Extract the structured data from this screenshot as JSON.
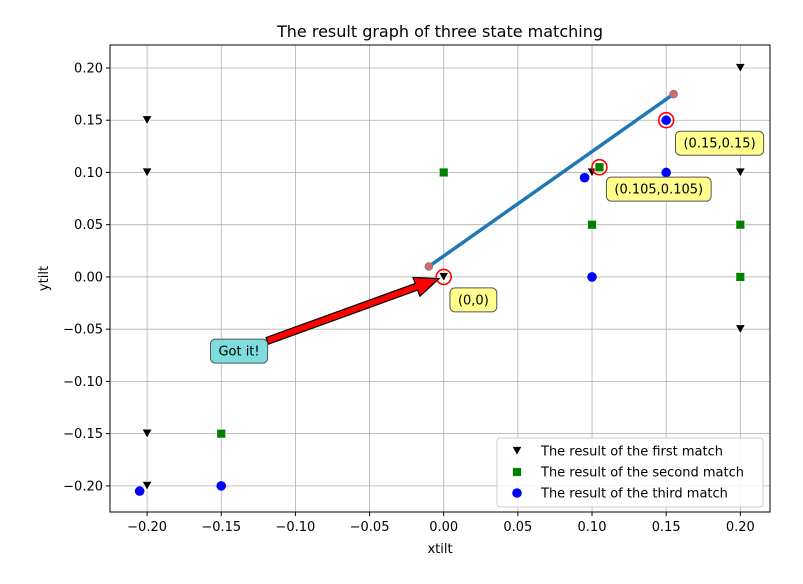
{
  "chart_data": {
    "type": "scatter",
    "title": "The result graph of three state matching",
    "xlabel": "xtilt",
    "ylabel": "ytilt",
    "xlim": [
      -0.225,
      0.22
    ],
    "ylim": [
      -0.225,
      0.222
    ],
    "xticks": [
      -0.2,
      -0.15,
      -0.1,
      -0.05,
      0.0,
      0.05,
      0.1,
      0.15,
      0.2
    ],
    "xtick_labels": [
      "−0.20",
      "−0.15",
      "−0.10",
      "−0.05",
      "0.00",
      "0.05",
      "0.10",
      "0.15",
      "0.20"
    ],
    "yticks": [
      -0.2,
      -0.15,
      -0.1,
      -0.05,
      0.0,
      0.05,
      0.1,
      0.15,
      0.2
    ],
    "ytick_labels": [
      "−0.20",
      "−0.15",
      "−0.10",
      "−0.05",
      "0.00",
      "0.05",
      "0.10",
      "0.15",
      "0.20"
    ],
    "grid": true,
    "legend_position": "lower-right",
    "series": [
      {
        "name": "The result of the first match",
        "marker": "triangle-down",
        "color": "#000000",
        "points": [
          [
            -0.2,
            0.15
          ],
          [
            -0.2,
            0.1
          ],
          [
            -0.2,
            -0.15
          ],
          [
            -0.2,
            -0.2
          ],
          [
            0.0,
            0.0
          ],
          [
            0.1,
            0.1
          ],
          [
            0.2,
            0.2
          ],
          [
            0.2,
            0.1
          ],
          [
            0.2,
            -0.05
          ]
        ]
      },
      {
        "name": "The result of the second match",
        "marker": "square",
        "color": "#008000",
        "points": [
          [
            0.0,
            0.1
          ],
          [
            -0.15,
            -0.15
          ],
          [
            0.105,
            0.105
          ],
          [
            0.1,
            0.05
          ],
          [
            0.2,
            0.05
          ],
          [
            0.2,
            0.0
          ]
        ]
      },
      {
        "name": "The result of the third match",
        "marker": "circle",
        "color": "#0000ff",
        "points": [
          [
            -0.205,
            -0.205
          ],
          [
            -0.15,
            -0.2
          ],
          [
            0.095,
            0.095
          ],
          [
            0.1,
            0.0
          ],
          [
            0.15,
            0.1
          ],
          [
            0.15,
            0.15
          ]
        ]
      }
    ],
    "line": {
      "color": "#1f77b4",
      "endpoint_color": "#e06666",
      "points": [
        [
          -0.01,
          0.01
        ],
        [
          0.155,
          0.175
        ]
      ]
    },
    "highlights": {
      "color": "#ff0000",
      "points": [
        [
          0.0,
          0.0
        ],
        [
          0.105,
          0.105
        ],
        [
          0.15,
          0.15
        ]
      ]
    },
    "annotations": [
      {
        "text": "(0,0)",
        "x": 0.02,
        "y": -0.022,
        "facecolor": "#ffff80"
      },
      {
        "text": "(0.105,0.105)",
        "x": 0.145,
        "y": 0.084,
        "facecolor": "#ffff80"
      },
      {
        "text": "(0.15,0.15)",
        "x": 0.186,
        "y": 0.128,
        "facecolor": "#ffff80"
      }
    ],
    "arrow_annotation": {
      "text": "Got it!",
      "text_x": -0.138,
      "text_y": -0.071,
      "target_x": 0.0,
      "target_y": 0.0,
      "facecolor": "#70d8d8",
      "arrow_color": "#ff0000"
    }
  }
}
